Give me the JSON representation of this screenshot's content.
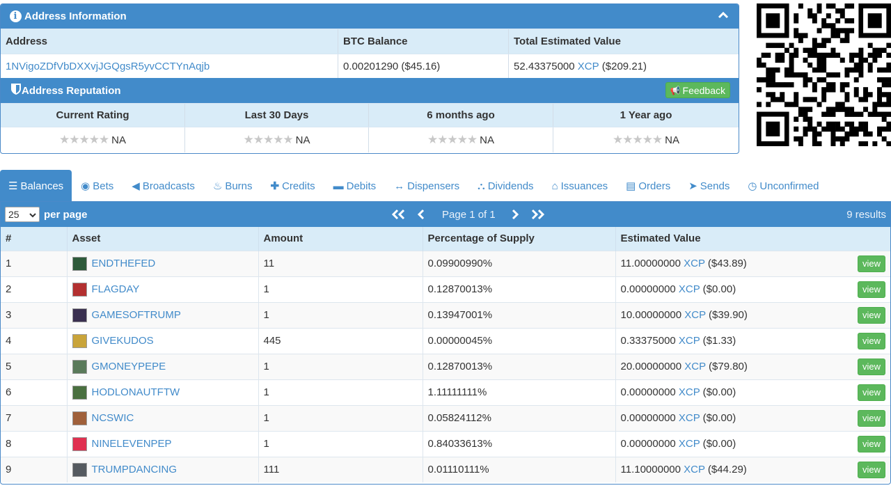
{
  "address_panel": {
    "title": "Address Information",
    "columns": [
      "Address",
      "BTC Balance",
      "Total Estimated Value"
    ],
    "address": "1NVigoZDfVbDXXvjJGQgsR5yvCCTYnAqjb",
    "btc_balance": "0.00201290 ($45.16)",
    "total_value_amount": "52.43375000",
    "total_value_asset": "XCP",
    "total_value_usd": "($209.21)"
  },
  "reputation": {
    "title": "Address Reputation",
    "feedback_label": "Feedback",
    "columns": [
      "Current Rating",
      "Last 30 Days",
      "6 months ago",
      "1 Year ago"
    ],
    "values": [
      "NA",
      "NA",
      "NA",
      "NA"
    ]
  },
  "tabs": [
    "Balances",
    "Bets",
    "Broadcasts",
    "Burns",
    "Credits",
    "Debits",
    "Dispensers",
    "Dividends",
    "Issuances",
    "Orders",
    "Sends",
    "Unconfirmed"
  ],
  "pager": {
    "per_page_value": "25",
    "per_page_label": "per page",
    "page_text": "Page 1 of 1",
    "results": "9 results"
  },
  "table": {
    "headers": [
      "#",
      "Asset",
      "Amount",
      "Percentage of Supply",
      "Estimated Value"
    ],
    "view_label": "view",
    "rows": [
      {
        "n": "1",
        "asset": "ENDTHEFED",
        "amount": "11",
        "pct": "0.09900990%",
        "ev_amt": "11.00000000",
        "ev_asset": "XCP",
        "ev_usd": "($43.89)",
        "thumb": "#2e5a3a"
      },
      {
        "n": "2",
        "asset": "FLAGDAY",
        "amount": "1",
        "pct": "0.12870013%",
        "ev_amt": "0.00000000",
        "ev_asset": "XCP",
        "ev_usd": "($0.00)",
        "thumb": "#b33030"
      },
      {
        "n": "3",
        "asset": "GAMESOFTRUMP",
        "amount": "1",
        "pct": "0.13947001%",
        "ev_amt": "10.00000000",
        "ev_asset": "XCP",
        "ev_usd": "($39.90)",
        "thumb": "#3a3050"
      },
      {
        "n": "4",
        "asset": "GIVEKUDOS",
        "amount": "445",
        "pct": "0.00000045%",
        "ev_amt": "0.33375000",
        "ev_asset": "XCP",
        "ev_usd": "($1.33)",
        "thumb": "#c9a43a"
      },
      {
        "n": "5",
        "asset": "GMONEYPEPE",
        "amount": "1",
        "pct": "0.12870013%",
        "ev_amt": "20.00000000",
        "ev_asset": "XCP",
        "ev_usd": "($79.80)",
        "thumb": "#5a7a5a"
      },
      {
        "n": "6",
        "asset": "HODLONAUTFTW",
        "amount": "1",
        "pct": "1.11111111%",
        "ev_amt": "0.00000000",
        "ev_asset": "XCP",
        "ev_usd": "($0.00)",
        "thumb": "#4a7040"
      },
      {
        "n": "7",
        "asset": "NCSWIC",
        "amount": "1",
        "pct": "0.05824112%",
        "ev_amt": "0.00000000",
        "ev_asset": "XCP",
        "ev_usd": "($0.00)",
        "thumb": "#a0603a"
      },
      {
        "n": "8",
        "asset": "NINELEVENPEP",
        "amount": "1",
        "pct": "0.84033613%",
        "ev_amt": "0.00000000",
        "ev_asset": "XCP",
        "ev_usd": "($0.00)",
        "thumb": "#e03050"
      },
      {
        "n": "9",
        "asset": "TRUMPDANCING",
        "amount": "111",
        "pct": "0.01110111%",
        "ev_amt": "11.10000000",
        "ev_asset": "XCP",
        "ev_usd": "($44.29)",
        "thumb": "#555a60"
      }
    ]
  },
  "colors": {
    "primary": "#428bca",
    "header_bg": "#d9ecf8",
    "success": "#5cb85c"
  }
}
